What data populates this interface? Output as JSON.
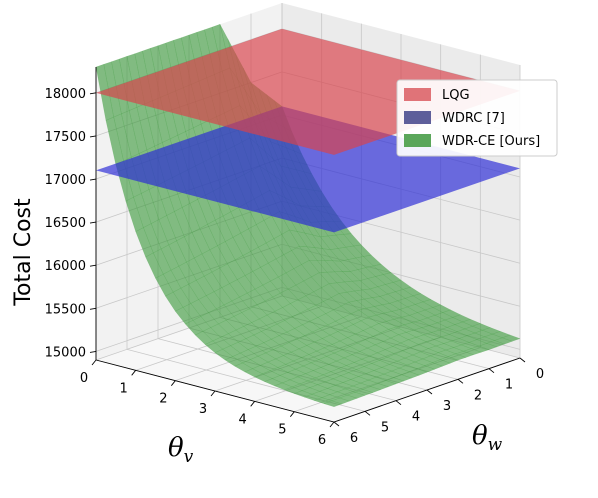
{
  "chart_data": {
    "type": "surface3d",
    "zlabel": "Total Cost",
    "xlabel": "θ",
    "xlabel_sub": "v",
    "ylabel": "θ",
    "ylabel_sub": "w",
    "x_ticks": [
      "0",
      "1",
      "2",
      "3",
      "4",
      "5",
      "6"
    ],
    "y_ticks": [
      "0",
      "1",
      "2",
      "3",
      "4",
      "5",
      "6"
    ],
    "z_ticks": [
      "15000",
      "15500",
      "16000",
      "16500",
      "17000",
      "17500",
      "18000"
    ],
    "xlim": [
      0,
      6
    ],
    "ylim": [
      0,
      6
    ],
    "zlim": [
      14900,
      18300
    ],
    "grid": true,
    "legend_position": "top-right",
    "series": [
      {
        "name": "LQG",
        "color": "#d9434b",
        "surface": "constant",
        "z": 18000
      },
      {
        "name": "WDRC [7]",
        "color": "#2b2bd6",
        "surface": "constant",
        "z": 17100
      },
      {
        "name": "WDR-CE [Ours]",
        "color": "#3c9a3c",
        "surface": "decaying",
        "z_at_zero_theta_v": [
          17100,
          17500,
          18300,
          18300,
          18300,
          18300,
          18300
        ],
        "z_at_large_theta_v": 15050
      }
    ],
    "legend_colors": [
      "#e07378",
      "#5e5e9a",
      "#5aa65a"
    ]
  }
}
